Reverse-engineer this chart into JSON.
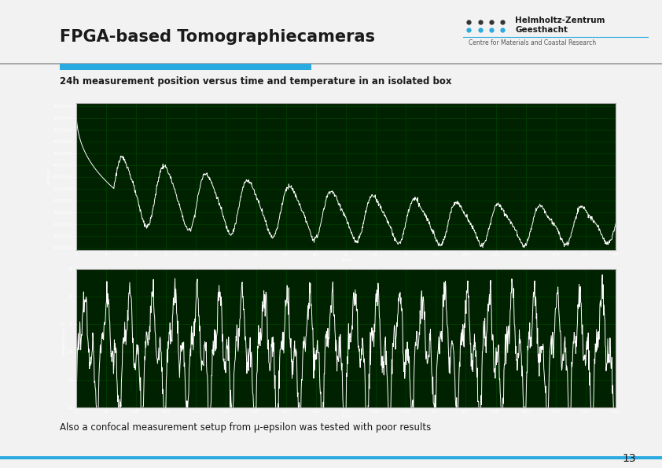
{
  "title": "FPGA-based Tomographiecameras",
  "subtitle": "24h measurement position versus time and temperature in an isolated box",
  "footer_text": "Also a confocal measurement setup from μ-epsilon was tested with poor results",
  "page_number": "13",
  "logo_text1": "Helmholtz-Zentrum",
  "logo_text2": "Geesthacht",
  "logo_text3": "Centre for Materials and Coastal Research",
  "bg_color": "#f2f2f2",
  "header_line_color": "#29abe2",
  "header_thin_line_color": "#888888",
  "footer_line_color": "#29abe2",
  "title_color": "#1a1a1a",
  "subtitle_color": "#1a1a1a",
  "plot_bg_color": "#002200",
  "plot_grid_color": "#004400",
  "plot_line_color": "white",
  "plot_frame_color": "#b0b0b0",
  "plot_frame_bg": "#c8c8c8",
  "dot_dark": "#333333",
  "dot_blue": "#29abe2"
}
